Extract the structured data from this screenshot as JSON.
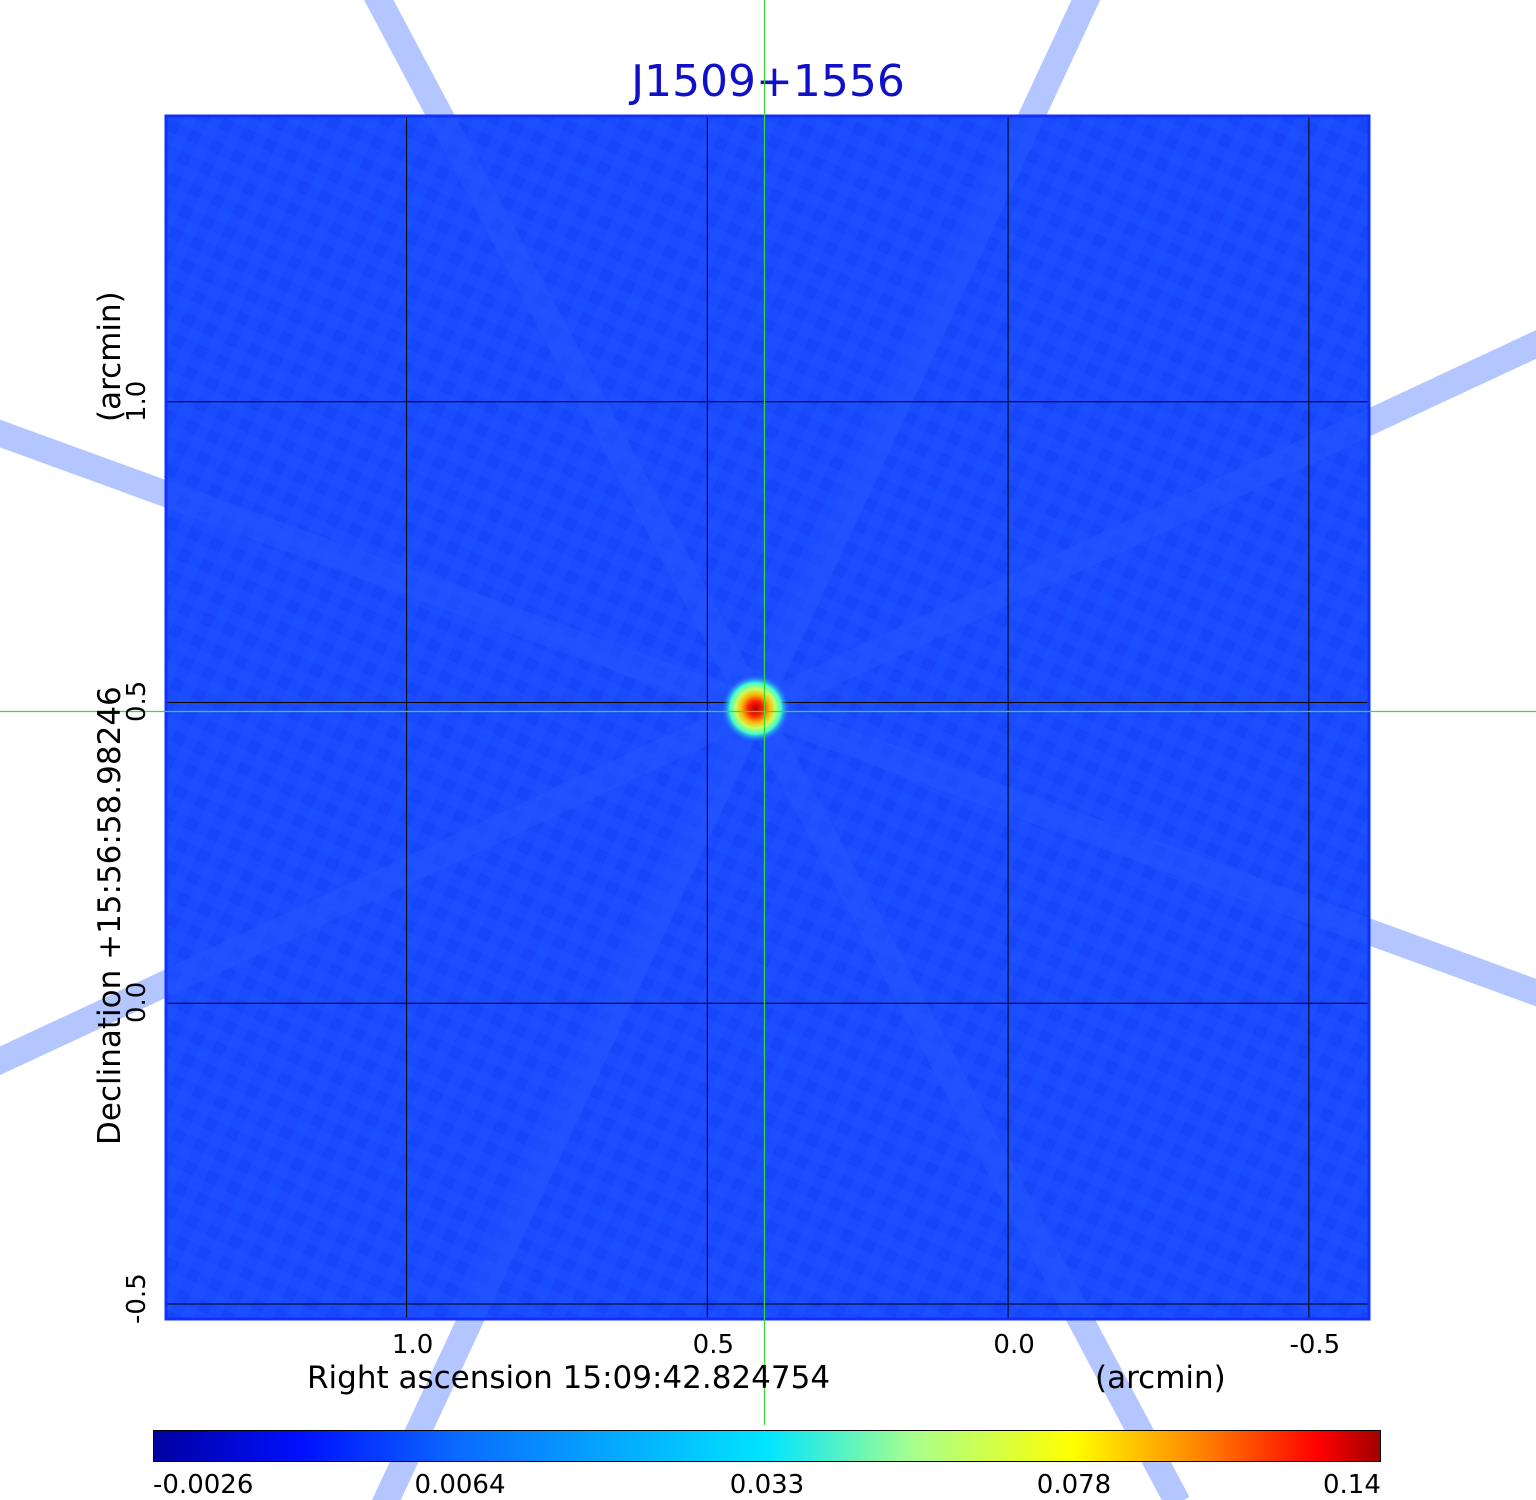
{
  "chart_data": {
    "type": "heatmap",
    "title": "J1509+1556",
    "xlabel": "Right ascension  15:09:42.824754",
    "xunit": "(arcmin)",
    "ylabel": "Declination  +15:56:58.98246",
    "yunit": "(arcmin)",
    "x_ticks": [
      "1.0",
      "0.5",
      "0.0",
      "-0.5"
    ],
    "x_tick_values": [
      1.0,
      0.5,
      0.0,
      -0.5
    ],
    "y_ticks": [
      "1.0",
      "0.5",
      "0.0",
      "-0.5"
    ],
    "y_tick_values": [
      1.0,
      0.5,
      0.0,
      -0.5
    ],
    "xlim": [
      1.4,
      -0.6
    ],
    "ylim": [
      -0.525,
      1.475
    ],
    "grid": true,
    "colormap": "jet",
    "colorbar_ticks": [
      "-0.0026",
      "0.0064",
      "0.033",
      "0.078",
      "0.14"
    ],
    "colorbar_range": [
      -0.0026,
      0.14
    ],
    "source": {
      "x": 0.42,
      "y": 0.49,
      "peak": 0.14
    },
    "crosshair": {
      "x": 0.405,
      "y": 0.485,
      "color": "#33dd33"
    },
    "background_value": 0.003
  }
}
